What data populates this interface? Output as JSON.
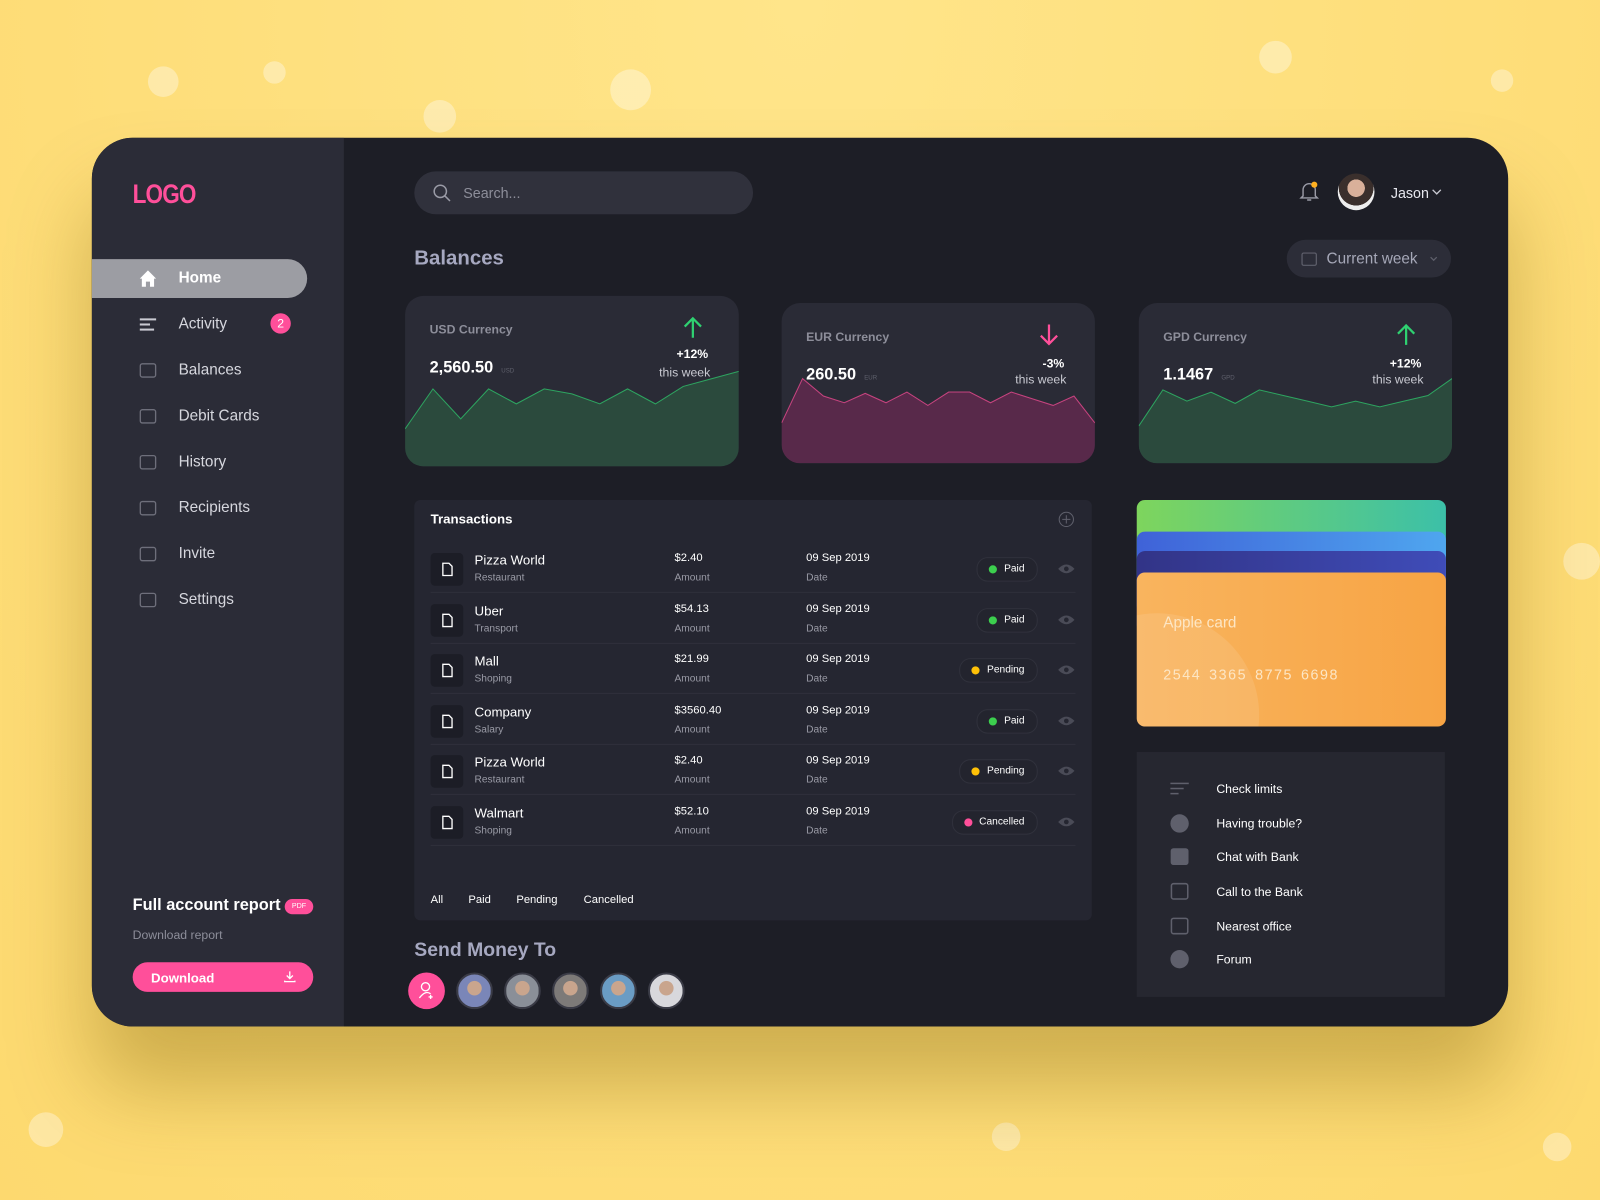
{
  "sidebar": {
    "logo": "LOGO",
    "nav": [
      {
        "label": "Home"
      },
      {
        "label": "Activity",
        "badge": "2"
      },
      {
        "label": "Balances"
      },
      {
        "label": "Debit Cards"
      },
      {
        "label": "History"
      },
      {
        "label": "Recipients"
      },
      {
        "label": "Invite"
      },
      {
        "label": "Settings"
      }
    ],
    "report": {
      "title": "Full account report",
      "badge": "PDF",
      "subtitle": "Download report",
      "button": "Download"
    }
  },
  "header": {
    "search_placeholder": "Search...",
    "user": "Jason"
  },
  "balances": {
    "title": "Balances",
    "period": "Current week",
    "cards": [
      {
        "name": "USD Currency",
        "amount": "2,560.50",
        "unit": "USD",
        "change": "+12%",
        "change_note": "this week",
        "direction": "up",
        "color": "#2fd171",
        "fill": "#2b4a3d",
        "trend": [
          30,
          62,
          38,
          62,
          50,
          62,
          58,
          50,
          62,
          50,
          64,
          70,
          76
        ]
      },
      {
        "name": "EUR Currency",
        "amount": "260.50",
        "unit": "EUR",
        "change": "-3%",
        "change_note": "this week",
        "direction": "down",
        "color": "#ff4f9a",
        "fill": "#58294a",
        "trend": [
          30,
          63,
          50,
          45,
          52,
          45,
          53,
          43,
          53,
          53,
          45,
          53,
          48,
          43,
          50,
          30
        ]
      },
      {
        "name": "GPD Currency",
        "amount": "1.1467",
        "unit": "GPD",
        "change": "+12%",
        "change_note": "this week",
        "direction": "up",
        "color": "#2fd171",
        "fill": "#2b4a3d",
        "trend": [
          33,
          65,
          55,
          63,
          53,
          65,
          60,
          55,
          50,
          55,
          50,
          55,
          60,
          75
        ]
      }
    ]
  },
  "transactions": {
    "title": "Transactions",
    "amount_label": "Amount",
    "date_label": "Date",
    "rows": [
      {
        "name": "Pizza World",
        "category": "Restaurant",
        "amount": "$2.40",
        "date": "09 Sep 2019",
        "status": "Paid",
        "status_color": "#3ccf4e"
      },
      {
        "name": "Uber",
        "category": "Transport",
        "amount": "$54.13",
        "date": "09 Sep 2019",
        "status": "Paid",
        "status_color": "#3ccf4e"
      },
      {
        "name": "Mall",
        "category": "Shoping",
        "amount": "$21.99",
        "date": "09 Sep 2019",
        "status": "Pending",
        "status_color": "#ffc107"
      },
      {
        "name": "Company",
        "category": "Salary",
        "amount": "$3560.40",
        "date": "09 Sep 2019",
        "status": "Paid",
        "status_color": "#3ccf4e"
      },
      {
        "name": "Pizza World",
        "category": "Restaurant",
        "amount": "$2.40",
        "date": "09 Sep 2019",
        "status": "Pending",
        "status_color": "#ffc107"
      },
      {
        "name": "Walmart",
        "category": "Shoping",
        "amount": "$52.10",
        "date": "09 Sep 2019",
        "status": "Cancelled",
        "status_color": "#ff4f9a"
      }
    ],
    "filters": [
      "All",
      "Paid",
      "Pending",
      "Cancelled"
    ]
  },
  "card": {
    "name": "Apple card",
    "number": [
      "2544",
      "3365",
      "8775",
      "6698"
    ]
  },
  "help": {
    "items": [
      "Check limits",
      "Having trouble?",
      "Chat with Bank",
      "Call to the Bank",
      "Nearest office",
      "Forum"
    ]
  },
  "send_money": {
    "title": "Send Money To"
  }
}
